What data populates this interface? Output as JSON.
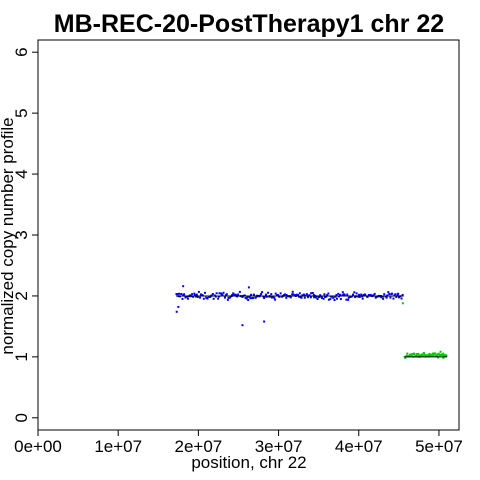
{
  "chart_data": {
    "type": "scatter",
    "title": "MB-REC-20-PostTherapy1 chr 22",
    "xlabel": "position, chr 22",
    "ylabel": "normalized copy number profile",
    "xlim": [
      0,
      52500000
    ],
    "ylim": [
      -0.2,
      6.2
    ],
    "x_ticks": [
      {
        "value": 0,
        "label": "0e+00"
      },
      {
        "value": 10000000,
        "label": "1e+07"
      },
      {
        "value": 20000000,
        "label": "2e+07"
      },
      {
        "value": 30000000,
        "label": "3e+07"
      },
      {
        "value": 40000000,
        "label": "4e+07"
      },
      {
        "value": 50000000,
        "label": "5e+07"
      }
    ],
    "y_ticks": [
      {
        "value": 0,
        "label": "0"
      },
      {
        "value": 1,
        "label": "1"
      },
      {
        "value": 2,
        "label": "2"
      },
      {
        "value": 3,
        "label": "3"
      },
      {
        "value": 4,
        "label": "4"
      },
      {
        "value": 5,
        "label": "5"
      },
      {
        "value": 6,
        "label": "6"
      }
    ],
    "grid": false,
    "legend": "none",
    "series": [
      {
        "color": "#0000ff",
        "x_range": [
          17200000,
          45500000
        ],
        "center": 2.0,
        "spread": 0.05,
        "n_points": 230,
        "outliers": [
          [
            25500000,
            1.52
          ],
          [
            28200000,
            1.58
          ],
          [
            18100000,
            2.16
          ],
          [
            17300000,
            1.74
          ],
          [
            17500000,
            1.82
          ],
          [
            26300000,
            2.14
          ]
        ]
      },
      {
        "color": "#00cc00",
        "x_range": [
          45800000,
          51000000
        ],
        "center": 1.03,
        "spread": 0.035,
        "n_points": 70,
        "outliers": [
          [
            45500000,
            1.88
          ]
        ]
      }
    ],
    "segments": [
      {
        "x": [
          17200000,
          45600000
        ],
        "y": 2.0
      },
      {
        "x": [
          45600000,
          51000000
        ],
        "y": 1.0
      }
    ]
  }
}
